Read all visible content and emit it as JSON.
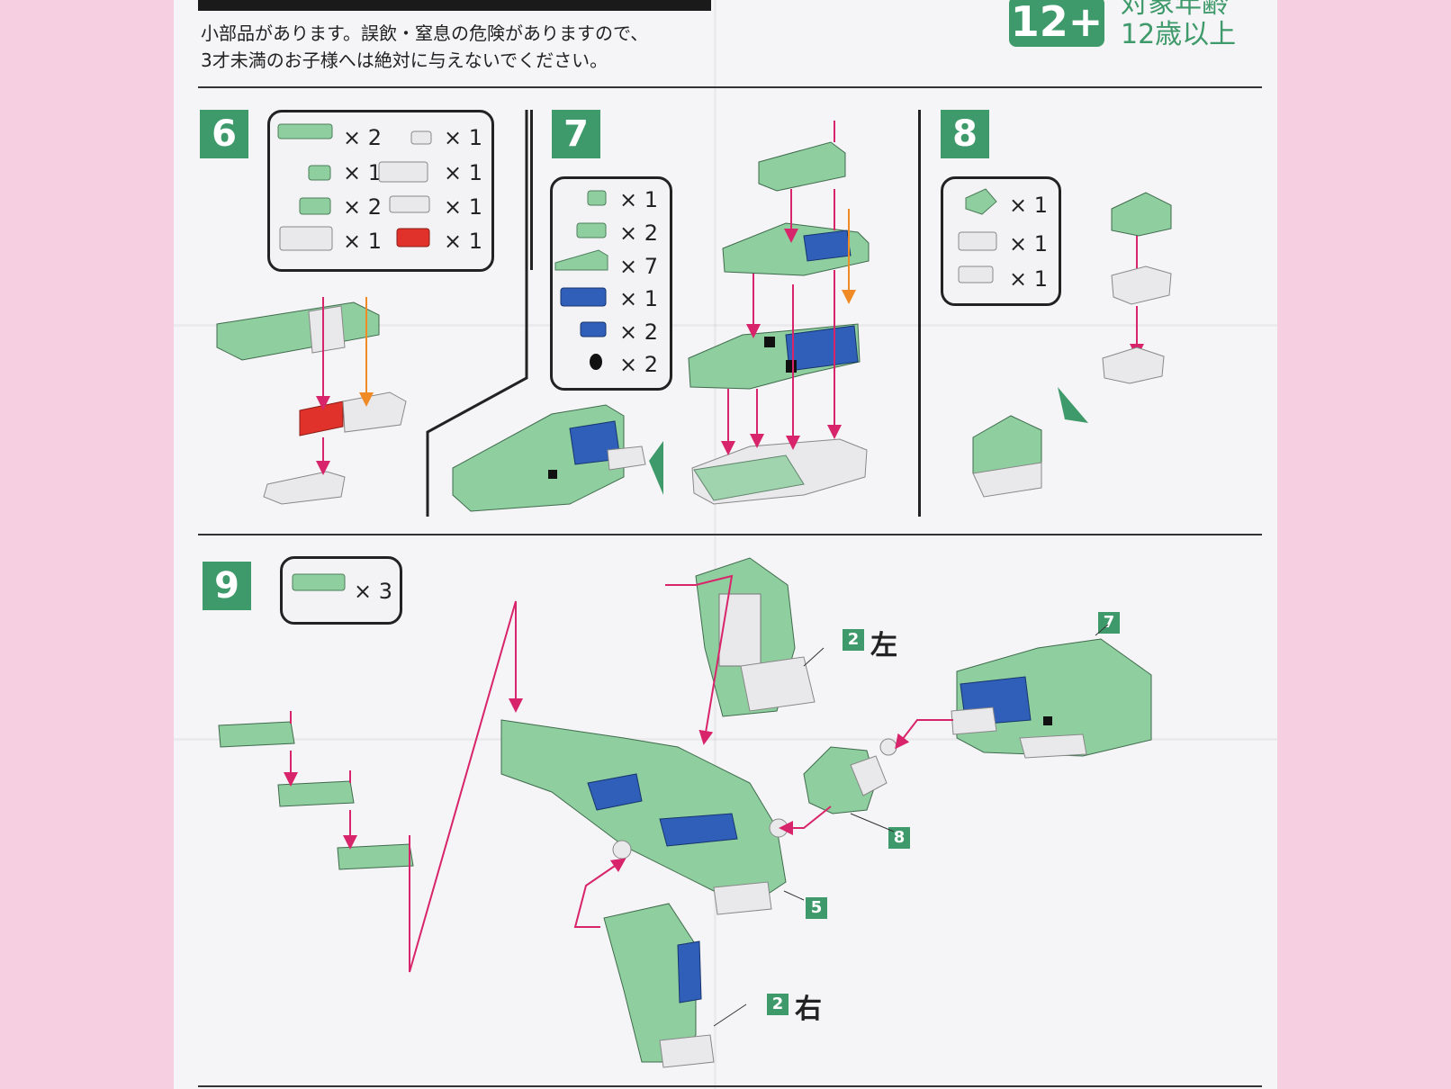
{
  "warning": {
    "line1": "小部品があります。誤飲・窒息の危険がありますので、",
    "line2": "3才未満のお子様へは絶対に与えないでください。"
  },
  "age": {
    "badge": "12+",
    "line1": "対象年齢",
    "line2": "12歳以上"
  },
  "steps": {
    "s6": {
      "number": "6",
      "parts": [
        "× 2",
        "× 1",
        "× 1",
        "× 1",
        "× 2",
        "× 1",
        "× 1",
        "× 1"
      ]
    },
    "s7": {
      "number": "7",
      "parts": [
        "× 1",
        "× 2",
        "× 7",
        "× 1",
        "× 2",
        "× 2"
      ]
    },
    "s8": {
      "number": "8",
      "parts": [
        "× 1",
        "× 1",
        "× 1"
      ]
    },
    "s9": {
      "number": "9",
      "parts": [
        "× 3"
      ],
      "callouts": {
        "left_ref": "2",
        "left_label": "左",
        "right_ref": "2",
        "right_label": "右",
        "head_ref": "7",
        "neck_ref": "8",
        "body_ref": "5"
      }
    }
  },
  "colors": {
    "accent": "#3f9a6b",
    "brick_green": "#8fcf9f",
    "brick_blue": "#2f5fb8",
    "brick_red": "#e0322a",
    "brick_white": "#e9e9ec",
    "arrow_magenta": "#d8246a",
    "arrow_orange": "#f08a25"
  }
}
